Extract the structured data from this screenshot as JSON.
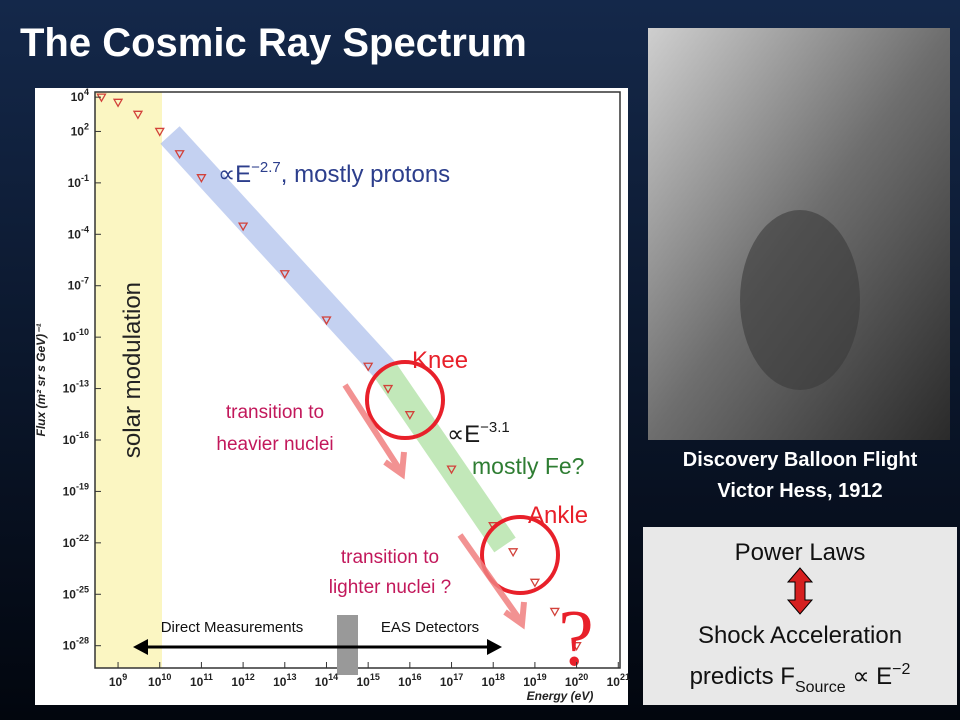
{
  "chart_data": {
    "type": "scatter",
    "title": "The Cosmic Ray Spectrum",
    "x_label": "Energy (eV)",
    "y_label": "Flux (m² sr s GeV)⁻¹",
    "xlog": true,
    "ylog": true,
    "xlim": [
      280000000.0,
      1.1e+21
    ],
    "ylim": [
      5e-30,
      20000.0
    ],
    "xticks": [
      {
        "value": 1000000000.0,
        "label": "10^9"
      },
      {
        "value": 10000000000.0,
        "label": "10^10"
      },
      {
        "value": 100000000000.0,
        "label": "10^11"
      },
      {
        "value": 1000000000000.0,
        "label": "10^12"
      },
      {
        "value": 10000000000000.0,
        "label": "10^13"
      },
      {
        "value": 100000000000000.0,
        "label": "10^14"
      },
      {
        "value": 1000000000000000.0,
        "label": "10^15"
      },
      {
        "value": 1e+16,
        "label": "10^16"
      },
      {
        "value": 1e+17,
        "label": "10^17"
      },
      {
        "value": 1e+18,
        "label": "10^18"
      },
      {
        "value": 1e+19,
        "label": "10^19"
      },
      {
        "value": 1e+20,
        "label": "10^20"
      },
      {
        "value": 1e+21,
        "label": "10^21"
      }
    ],
    "yticks": [
      {
        "value": 10000.0,
        "label": "10^4"
      },
      {
        "value": 100.0,
        "label": "10^2"
      },
      {
        "value": 0.1,
        "label": "10^-1"
      },
      {
        "value": 0.0001,
        "label": "10^-4"
      },
      {
        "value": 1e-07,
        "label": "10^-7"
      },
      {
        "value": 1e-10,
        "label": "10^-10"
      },
      {
        "value": 1e-13,
        "label": "10^-13"
      },
      {
        "value": 1e-16,
        "label": "10^-16"
      },
      {
        "value": 1e-19,
        "label": "10^-19"
      },
      {
        "value": 1e-22,
        "label": "10^-22"
      },
      {
        "value": 1e-25,
        "label": "10^-25"
      },
      {
        "value": 1e-28,
        "label": "10^-28"
      }
    ],
    "x": [
      400000000.0,
      1000000000.0,
      3000000000.0,
      10000000000.0,
      30000000000.0,
      100000000000.0,
      1000000000000.0,
      10000000000000.0,
      100000000000000.0,
      1000000000000000.0,
      3000000000000000.0,
      1e+16,
      1e+17,
      1e+18,
      3e+18,
      1e+19,
      3e+19,
      1e+20
    ],
    "values": [
      10000.0,
      5000.0,
      1000.0,
      100.0,
      5,
      0.2,
      0.0003,
      5e-07,
      1e-09,
      2e-12,
      1e-13,
      3e-15,
      2e-18,
      1e-21,
      3e-23,
      5e-25,
      1e-26,
      1e-28
    ],
    "color": "#d2413a",
    "annotations": {
      "solar": "solar modulation",
      "protons": {
        "pre": "∝E",
        "sup": "−2.7",
        "post": ", mostly protons"
      },
      "knee": "Knee",
      "heavier": [
        "transition to",
        "heavier nuclei"
      ],
      "fe": {
        "pre": "∝E",
        "sup": "−3.1",
        "post": "mostly Fe?"
      },
      "ankle": "Ankle",
      "lighter": [
        "transition to",
        "lighter nuclei ?"
      ],
      "question": "?",
      "direct": "Direct Measurements",
      "eas": "EAS Detectors"
    }
  },
  "slide": {
    "caption": [
      "Discovery Balloon Flight",
      "Victor Hess, 1912"
    ],
    "box": {
      "line1": "Power Laws",
      "line2": "Shock Acceleration",
      "line3": {
        "pre": "predicts F",
        "sub": "Source",
        "mid": " ∝ E",
        "sup": "−2"
      }
    }
  }
}
